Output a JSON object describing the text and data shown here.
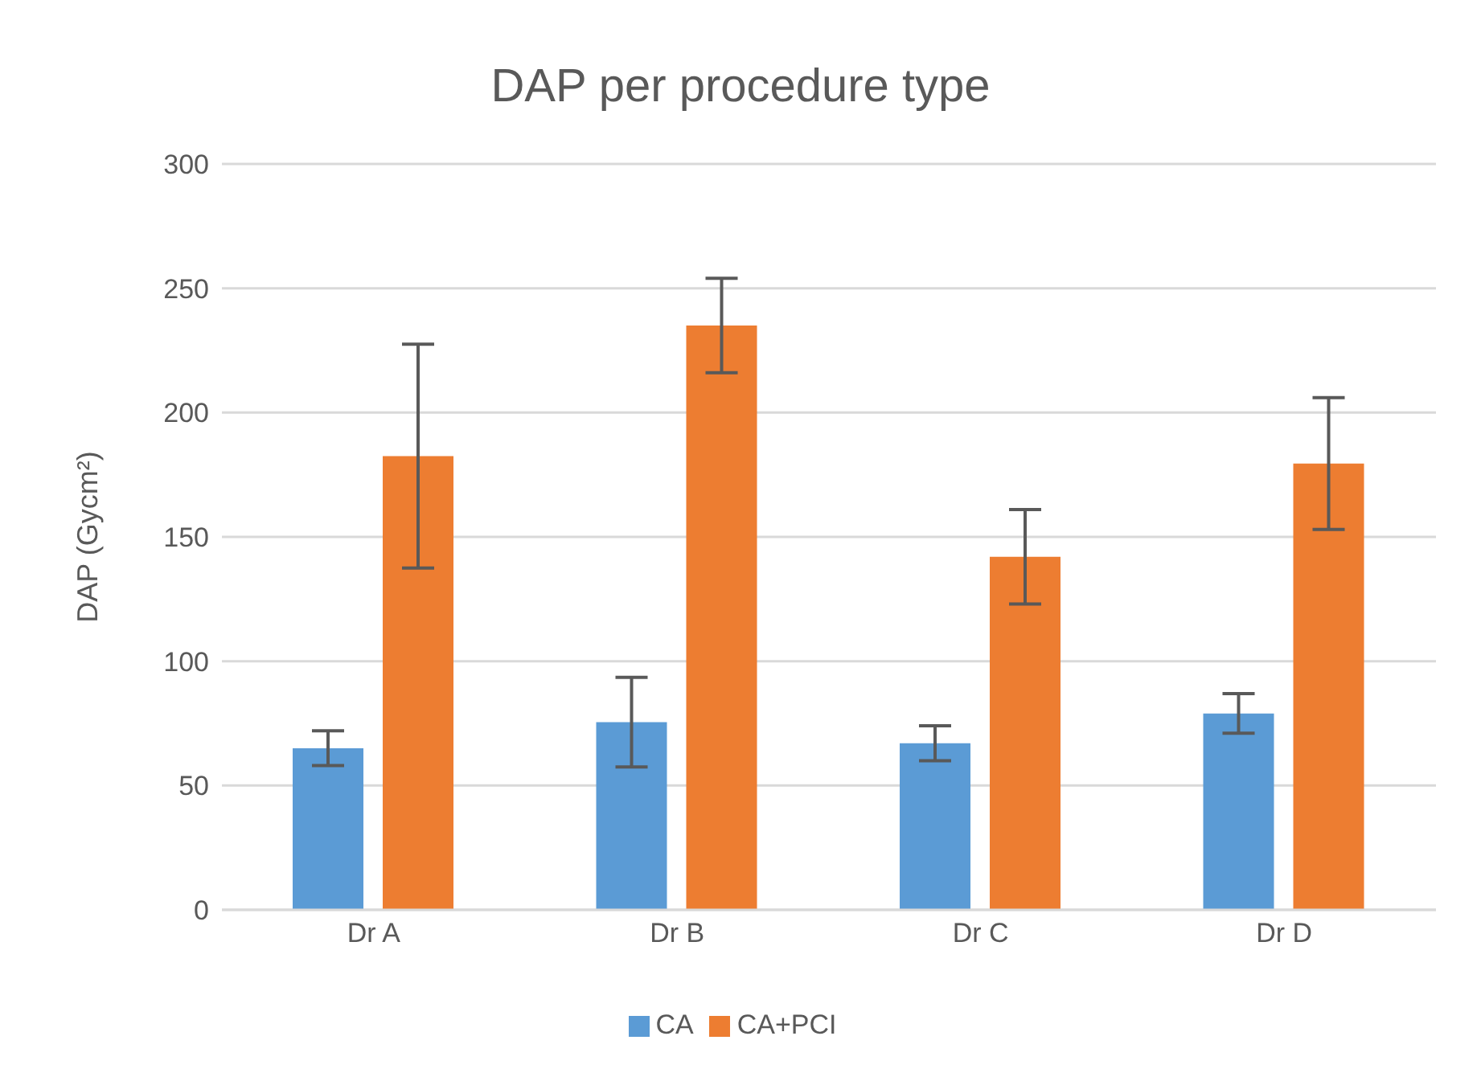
{
  "chart_data": {
    "type": "bar",
    "title": "DAP per procedure type",
    "ylabel": "DAP (Gycm²)",
    "categories": [
      "Dr A",
      "Dr B",
      "Dr C",
      "Dr D"
    ],
    "series": [
      {
        "name": "CA",
        "color": "#5b9bd5",
        "values": [
          65,
          75.5,
          67,
          79
        ],
        "errors": [
          7,
          18,
          7,
          8
        ]
      },
      {
        "name": "CA+PCI",
        "color": "#ed7d31",
        "values": [
          182.5,
          235,
          142,
          179.5
        ],
        "errors": [
          45,
          19,
          19,
          26.5
        ]
      }
    ],
    "ylim": [
      0,
      300
    ],
    "yticks": [
      0,
      50,
      100,
      150,
      200,
      250,
      300
    ],
    "grid": "y",
    "legend": "bottom"
  }
}
